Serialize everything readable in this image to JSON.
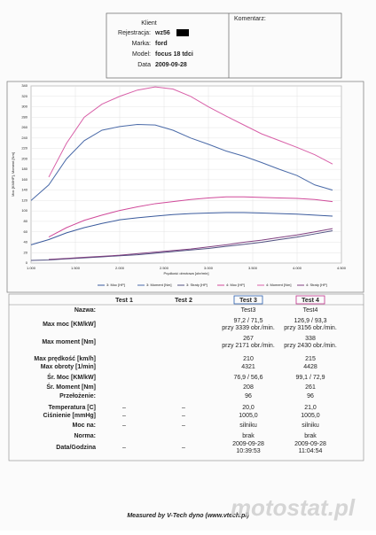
{
  "header": {
    "fields": [
      {
        "label": "Klient",
        "value": null
      },
      {
        "label": "Rejestracja:",
        "value": "wz56"
      },
      {
        "label": "Marka:",
        "value": "ford"
      },
      {
        "label": "Model:",
        "value": "focus 18  tdci"
      },
      {
        "label": "Data",
        "value": "2009-09-28"
      }
    ],
    "comment_label": "Komentarz:"
  },
  "chart_data": {
    "type": "line",
    "x_label": "Prędkość obrotowa [obr/min]",
    "y_label": "Moc [KM/HP], Moment [Nm]",
    "x": [
      1000,
      1200,
      1400,
      1600,
      1800,
      2000,
      2200,
      2400,
      2600,
      2800,
      3000,
      3200,
      3400,
      3600,
      3800,
      4000,
      4200,
      4400
    ],
    "series": [
      {
        "name": "3: Moc [HP]",
        "color": "#3a5a9c",
        "values": [
          35,
          45,
          58,
          68,
          76,
          83,
          87,
          90,
          93,
          95,
          96,
          97,
          97,
          96,
          95,
          94,
          92,
          90
        ]
      },
      {
        "name": "3: Moment [Nm]",
        "color": "#4a6aa8",
        "values": [
          120,
          150,
          200,
          235,
          255,
          262,
          266,
          265,
          255,
          240,
          228,
          215,
          205,
          193,
          180,
          168,
          150,
          140
        ]
      },
      {
        "name": "3: Straty [HP]",
        "color": "#505080",
        "values": [
          5,
          6,
          8,
          10,
          12,
          14,
          16,
          19,
          22,
          25,
          28,
          32,
          36,
          40,
          45,
          50,
          56,
          62
        ]
      },
      {
        "name": "4: Moc [HP]",
        "color": "#d04a9a",
        "values": [
          null,
          50,
          68,
          82,
          92,
          101,
          108,
          114,
          118,
          122,
          125,
          127,
          127,
          126,
          125,
          124,
          122,
          118
        ]
      },
      {
        "name": "4: Moment [Nm]",
        "color": "#d860a8",
        "values": [
          null,
          165,
          230,
          280,
          305,
          320,
          332,
          338,
          334,
          320,
          300,
          282,
          265,
          248,
          235,
          222,
          208,
          190
        ]
      },
      {
        "name": "4: Straty [HP]",
        "color": "#804080",
        "values": [
          null,
          7,
          9,
          11,
          13,
          15,
          18,
          21,
          24,
          27,
          31,
          35,
          40,
          44,
          49,
          54,
          60,
          66
        ]
      }
    ],
    "xlim": [
      1000,
      4500
    ],
    "ylim": [
      0,
      340
    ],
    "xticks": [
      {
        "value": 1000,
        "label": "1.000"
      },
      {
        "value": 1500,
        "label": "1.500"
      },
      {
        "value": 2000,
        "label": "2.000"
      },
      {
        "value": 2500,
        "label": "2.500"
      },
      {
        "value": 3000,
        "label": "3.000"
      },
      {
        "value": 3500,
        "label": "3.500"
      },
      {
        "value": 4000,
        "label": "4.000"
      },
      {
        "value": 4500,
        "label": "4.500"
      }
    ],
    "yticks": [
      0,
      20,
      40,
      60,
      80,
      100,
      120,
      140,
      160,
      180,
      200,
      220,
      240,
      260,
      280,
      300,
      320,
      340
    ],
    "grid": true
  },
  "table": {
    "columns": [
      "Test 1",
      "Test 2",
      "Test 3",
      "Test 4"
    ],
    "rows": [
      {
        "label": "Nazwa:",
        "cells": [
          null,
          null,
          [
            "Test3"
          ],
          [
            "Test4"
          ]
        ]
      },
      {
        "label": "Max moc [KM/kW]",
        "cells": [
          null,
          null,
          [
            "97,2 / 71,5",
            "przy 3339 obr./min."
          ],
          [
            "126,9 / 93,3",
            "przy 3156 obr./min."
          ]
        ]
      },
      {
        "label": "Max moment [Nm]",
        "cells": [
          null,
          null,
          [
            "267",
            "przy 2171 obr./min."
          ],
          [
            "338",
            "przy 2430 obr./min."
          ]
        ]
      },
      {
        "label": "Max prędkość [km/h]",
        "cells": [
          null,
          null,
          [
            "210"
          ],
          [
            "215"
          ]
        ]
      },
      {
        "label": "Max obroty [1/min]",
        "cells": [
          null,
          null,
          [
            "4321"
          ],
          [
            "4428"
          ]
        ]
      },
      {
        "label": "Śr. Moc [KM/kW]",
        "cells": [
          null,
          null,
          [
            "76,9 / 56,6"
          ],
          [
            "99,1 / 72,9"
          ]
        ]
      },
      {
        "label": "Śr. Moment [Nm]",
        "cells": [
          null,
          null,
          [
            "208"
          ],
          [
            "261"
          ]
        ]
      },
      {
        "label": "Przełożenie:",
        "cells": [
          null,
          null,
          [
            "96"
          ],
          [
            "96"
          ]
        ]
      },
      {
        "label": "Temperatura [C]",
        "cells": [
          [
            "–"
          ],
          [
            "–"
          ],
          [
            "20,0"
          ],
          [
            "21,0"
          ]
        ]
      },
      {
        "label": "Ciśnienie [mmHg]",
        "cells": [
          [
            "–"
          ],
          [
            "–"
          ],
          [
            "1005,0"
          ],
          [
            "1005,0"
          ]
        ]
      },
      {
        "label": "Moc na:",
        "cells": [
          [
            "–"
          ],
          [
            "–"
          ],
          [
            "silniku"
          ],
          [
            "silniku"
          ]
        ]
      },
      {
        "label": "Norma:",
        "cells": [
          null,
          null,
          [
            "brak"
          ],
          [
            "brak"
          ]
        ]
      },
      {
        "label": "Data/Godzina",
        "cells": [
          [
            "–"
          ],
          [
            "–"
          ],
          [
            "2009-09-28",
            "10:39:53"
          ],
          [
            "2009-09-28",
            "11:04:54"
          ]
        ]
      }
    ]
  },
  "footer": "Measured by V-Tech dyno (www.vtech.pl)",
  "watermark": "motostat.pl"
}
